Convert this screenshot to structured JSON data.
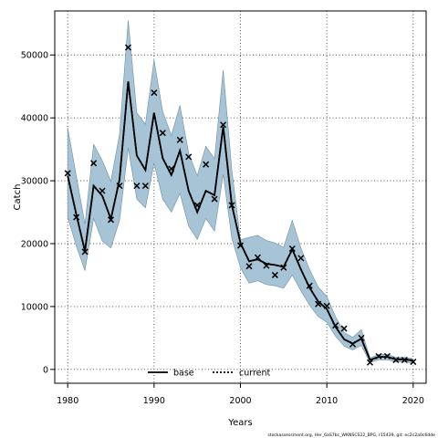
{
  "chart_data": {
    "type": "line",
    "title": "",
    "xlabel": "Years",
    "ylabel": "Catch",
    "xlim": [
      1978.5,
      2021.5
    ],
    "ylim": [
      -2200,
      57000
    ],
    "x_ticks": [
      1980,
      1990,
      2000,
      2010,
      2020
    ],
    "y_ticks": [
      0,
      10000,
      20000,
      30000,
      40000,
      50000
    ],
    "grid": true,
    "legend_position": "bottom-center",
    "footer": "stockassessment.org, Her_6aS7bc_WKNSCS22_BPG, r15439, git: ec2c2a0c6dde",
    "x": [
      1980,
      1981,
      1982,
      1983,
      1984,
      1985,
      1986,
      1987,
      1988,
      1989,
      1990,
      1991,
      1992,
      1993,
      1994,
      1995,
      1996,
      1997,
      1998,
      1999,
      2000,
      2001,
      2002,
      2003,
      2004,
      2005,
      2006,
      2007,
      2008,
      2009,
      2010,
      2011,
      2012,
      2013,
      2014,
      2015,
      2016,
      2017,
      2018,
      2019,
      2020
    ],
    "observed": [
      31200,
      24200,
      18700,
      32800,
      28400,
      23800,
      29200,
      51200,
      29200,
      29200,
      44000,
      37600,
      31900,
      36500,
      33800,
      26100,
      32600,
      27100,
      38900,
      26100,
      19700,
      16400,
      17800,
      16500,
      15000,
      16200,
      19200,
      17700,
      13300,
      10400,
      10100,
      7000,
      6500,
      4000,
      5000,
      1100,
      2100,
      2100,
      1500,
      1500,
      1200
    ],
    "series": [
      {
        "name": "base",
        "estimate": [
          30800,
          24600,
          18800,
          29200,
          27600,
          23900,
          30200,
          45800,
          34000,
          31700,
          40800,
          33600,
          30900,
          34800,
          28400,
          25000,
          28400,
          27700,
          38600,
          26200,
          20100,
          17200,
          17500,
          16800,
          16600,
          16300,
          19100,
          15900,
          13000,
          10800,
          9600,
          6800,
          4800,
          4100,
          4900,
          1500,
          2000,
          2000,
          1600,
          1600,
          1400
        ],
        "lower": [
          24200,
          19600,
          15700,
          24000,
          20400,
          19300,
          23700,
          35200,
          27100,
          25700,
          32800,
          27100,
          25000,
          28000,
          22800,
          20700,
          24000,
          22000,
          31000,
          20900,
          16200,
          13700,
          14100,
          13500,
          13300,
          12900,
          15000,
          12500,
          10200,
          8400,
          7500,
          5300,
          3700,
          3100,
          3800,
          1100,
          1500,
          1500,
          1200,
          1200,
          1000
        ],
        "upper": [
          38400,
          30700,
          23100,
          35800,
          33200,
          29900,
          37400,
          55500,
          40800,
          39000,
          49200,
          41000,
          37200,
          42000,
          34400,
          30800,
          35500,
          33500,
          47600,
          31800,
          20600,
          21000,
          21300,
          20500,
          20100,
          19400,
          23700,
          19300,
          15900,
          13100,
          11600,
          8400,
          5900,
          5100,
          6300,
          1800,
          2400,
          2400,
          1900,
          1900,
          1700
        ]
      },
      {
        "name": "current",
        "estimate": [
          30800,
          24600,
          18800,
          29200,
          27600,
          23900,
          30200,
          45800,
          34000,
          31700,
          40800,
          33600,
          30900,
          34800,
          28400,
          25000,
          28400,
          27700,
          38600,
          26200,
          20100,
          17200,
          17500,
          16800,
          16600,
          16300,
          19100,
          15900,
          13000,
          10800,
          9600,
          6800,
          4800,
          4100,
          4900,
          1500,
          2000,
          2000,
          1600,
          1600,
          1400
        ]
      }
    ]
  },
  "colors": {
    "band_fill": "#a6c4d6",
    "band_edge": "#6f8f9f",
    "line": "#000000",
    "grid": "#444444"
  }
}
